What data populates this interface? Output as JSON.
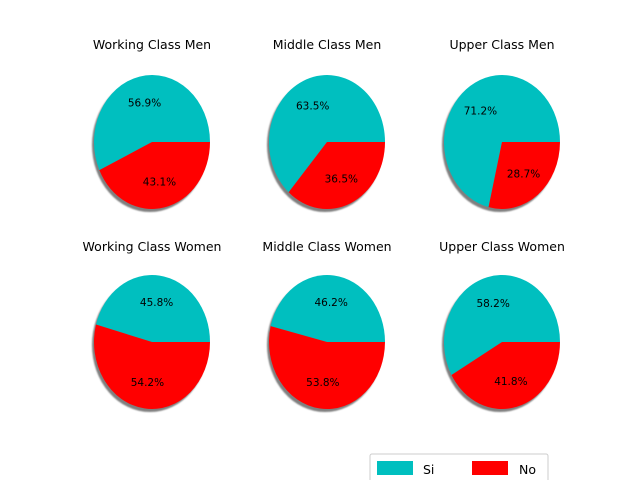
{
  "chart_data": {
    "type": "pie",
    "series_labels": [
      "Si",
      "No"
    ],
    "colors": [
      "#00bfbf",
      "#ff0000"
    ],
    "shadow": true,
    "legend": {
      "placement": "bottom-right",
      "entries": [
        {
          "label": "Si",
          "color": "#00bfbf"
        },
        {
          "label": "No",
          "color": "#ff0000"
        }
      ]
    },
    "pies": [
      {
        "title": "Working Class Men",
        "values": [
          56.9,
          43.1
        ],
        "labels": [
          "56.9%",
          "43.1%"
        ]
      },
      {
        "title": "Middle Class Men",
        "values": [
          63.5,
          36.5
        ],
        "labels": [
          "63.5%",
          "36.5%"
        ]
      },
      {
        "title": "Upper Class Men",
        "values": [
          71.2,
          28.7
        ],
        "labels": [
          "71.2%",
          "28.7%"
        ]
      },
      {
        "title": "Working Class Women",
        "values": [
          45.8,
          54.2
        ],
        "labels": [
          "45.8%",
          "54.2%"
        ]
      },
      {
        "title": "Middle Class Women",
        "values": [
          46.2,
          53.8
        ],
        "labels": [
          "46.2%",
          "53.8%"
        ]
      },
      {
        "title": "Upper Class Women",
        "values": [
          58.2,
          41.8
        ],
        "labels": [
          "58.2%",
          "41.8%"
        ]
      }
    ]
  }
}
